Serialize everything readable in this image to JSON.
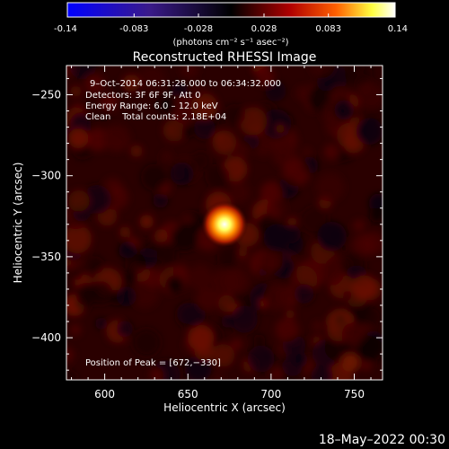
{
  "colorbar": {
    "ticks": [
      "-0.14",
      "-0.083",
      "-0.028",
      "0.028",
      "0.083",
      "0.14"
    ],
    "tick_values": [
      -0.14,
      -0.083,
      -0.028,
      0.028,
      0.083,
      0.14
    ],
    "range": [
      -0.14,
      0.14
    ],
    "unit_label": "(photons cm⁻² s⁻¹ asec⁻²)"
  },
  "chart_data": {
    "type": "heatmap",
    "title": "Reconstructed RHESSI Image",
    "xlabel": "Heliocentric X (arcsec)",
    "ylabel": "Heliocentric Y (arcsec)",
    "xlim": [
      577,
      767
    ],
    "ylim": [
      -426,
      -232
    ],
    "x_ticks": [
      600,
      650,
      700,
      750
    ],
    "y_ticks": [
      -250,
      -300,
      -350,
      -400
    ],
    "x_tick_labels": [
      "600",
      "650",
      "700",
      "750"
    ],
    "y_tick_labels": [
      "−250",
      "−300",
      "−350",
      "−400"
    ],
    "peak": {
      "x": 672,
      "y": -330
    },
    "annotations": {
      "time": "9–Oct–2014 06:31:28.000 to 06:34:32.000",
      "detectors": "Detectors: 3F 6F 9F, Att 0",
      "energy": "Energy Range: 6.0 – 12.0 keV",
      "clean": "Clean    Total counts: 2.18E+04",
      "peak_text": "Position of Peak = [672,−330]"
    }
  },
  "footer": {
    "date": "18–May–2022 00:30"
  }
}
